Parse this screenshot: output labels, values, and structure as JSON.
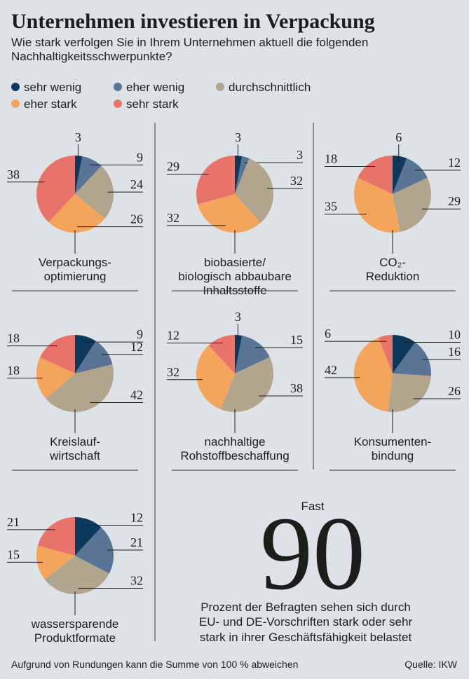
{
  "header": {
    "title": "Unternehmen investieren in Verpackung",
    "subtitle": [
      "Wie stark verfolgen Sie in Ihrem Unternehmen aktuell die folgenden",
      "Nachhaltigkeitsschwerpunkte?"
    ]
  },
  "legend": {
    "categories": [
      "sehr wenig",
      "eher wenig",
      "durchschnittlich",
      "eher stark",
      "sehr stark"
    ],
    "colors": [
      "#0d3a5c",
      "#5a7496",
      "#b1a58d",
      "#f4a55b",
      "#e8736b"
    ]
  },
  "chart_data": [
    {
      "type": "pie",
      "title": [
        "Verpackungs-",
        "optimierung"
      ],
      "values": [
        3,
        9,
        24,
        26,
        38
      ]
    },
    {
      "type": "pie",
      "title": [
        "biobasierte/",
        "biologisch abbaubare",
        "Inhaltsstoffe"
      ],
      "values": [
        3,
        3,
        32,
        32,
        29
      ]
    },
    {
      "type": "pie",
      "title": [
        "CO₂-",
        "Reduktion"
      ],
      "values": [
        6,
        12,
        29,
        35,
        18
      ]
    },
    {
      "type": "pie",
      "title": [
        "Kreislauf-",
        "wirtschaft"
      ],
      "values": [
        9,
        12,
        42,
        18,
        18
      ]
    },
    {
      "type": "pie",
      "title": [
        "nachhaltige",
        "Rohstoffbeschaffung"
      ],
      "values": [
        3,
        15,
        38,
        32,
        12
      ]
    },
    {
      "type": "pie",
      "title": [
        "Konsumenten-",
        "bindung"
      ],
      "values": [
        10,
        16,
        26,
        42,
        6
      ]
    },
    {
      "type": "pie",
      "title": [
        "wassersparende",
        "Produktformate"
      ],
      "values": [
        12,
        21,
        32,
        15,
        21
      ]
    }
  ],
  "stat": {
    "prefix": "Fast",
    "value": 90,
    "text": [
      "Prozent der Befragten sehen sich durch",
      "EU- und DE-Vorschriften stark oder sehr",
      "stark in ihrer Geschäftsfähigkeit belastet"
    ]
  },
  "footer": {
    "note": "Aufgrund von Rundungen kann die Summe von 100 % abweichen",
    "source": "Quelle: IKW"
  }
}
